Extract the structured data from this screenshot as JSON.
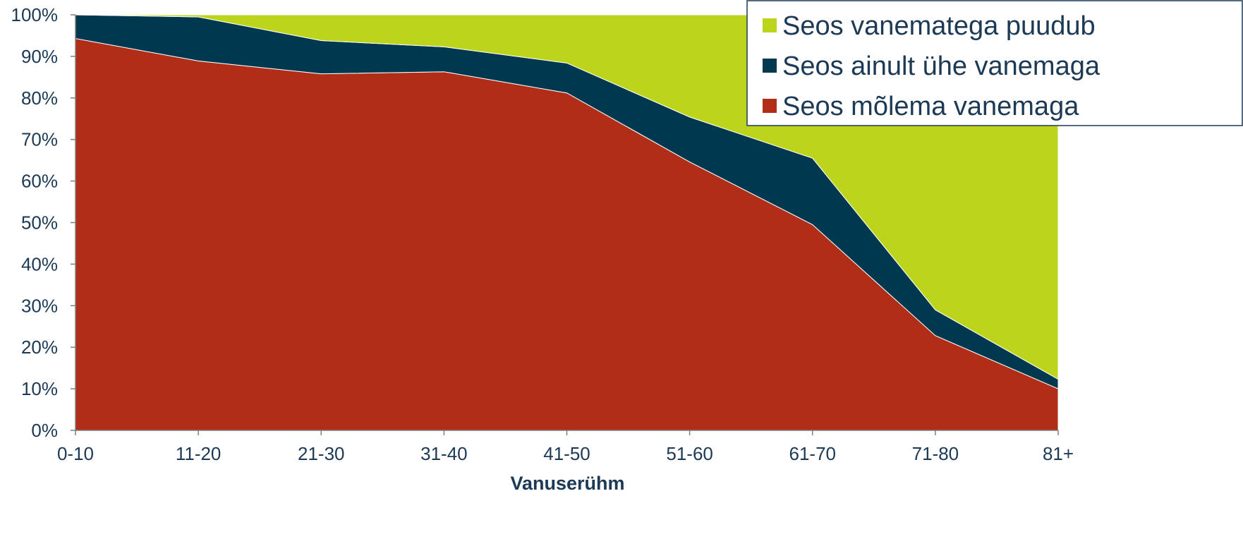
{
  "chart_data": {
    "type": "area",
    "stacked": true,
    "categories": [
      "0-10",
      "11-20",
      "21-30",
      "31-40",
      "41-50",
      "51-60",
      "61-70",
      "71-80",
      "81+"
    ],
    "series": [
      {
        "name": "Seos mõlema vanemaga",
        "color": "#b02e17",
        "values": [
          94.3,
          88.9,
          85.8,
          86.3,
          81.2,
          64.6,
          49.5,
          22.8,
          10.0
        ]
      },
      {
        "name": "Seos ainult ühe vanemaga",
        "color": "#00384f",
        "values": [
          5.7,
          10.6,
          8.0,
          6.0,
          7.2,
          10.8,
          16.0,
          6.2,
          2.3
        ]
      },
      {
        "name": "Seos vanematega puudub",
        "color": "#bcd51c",
        "values": [
          0.0,
          0.5,
          6.2,
          7.7,
          11.6,
          24.6,
          34.5,
          71.0,
          87.7
        ]
      }
    ],
    "legend_order": [
      "Seos vanematega puudub",
      "Seos ainult ühe vanemaga",
      "Seos mõlema vanemaga"
    ],
    "legend_position": "top-right",
    "ylim": [
      0,
      100
    ],
    "yticks": [
      "0%",
      "10%",
      "20%",
      "30%",
      "40%",
      "50%",
      "60%",
      "70%",
      "80%",
      "90%",
      "100%"
    ],
    "xlabel": "Vanuserühm",
    "ylabel": "",
    "grid": false,
    "axis_color": "#7f7f7f",
    "text_color": "#1c3a55"
  }
}
